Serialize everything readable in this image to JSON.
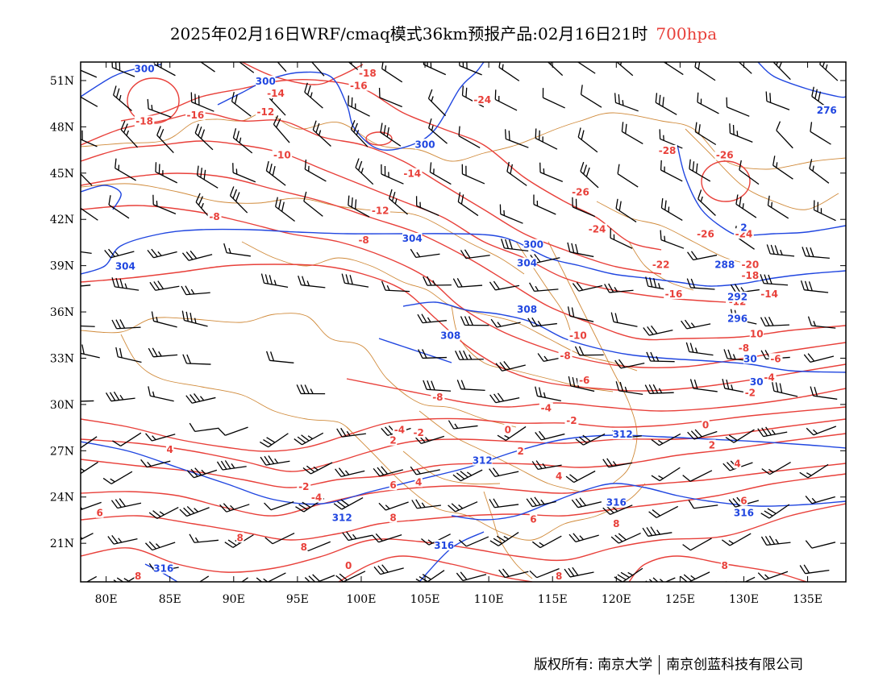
{
  "title": {
    "main": "2025年02月16日WRF/cmaq模式36km预报产品:02月16日21时",
    "level": "700hpa"
  },
  "colors": {
    "temperature": "#e8403a",
    "height": "#2046e0",
    "wind": "#000000",
    "borders": "#d08a3a"
  },
  "axes": {
    "lon_range": [
      78,
      138
    ],
    "lat_range": [
      18.5,
      52.2
    ],
    "x_ticks": [
      {
        "v": 80,
        "label": "80E"
      },
      {
        "v": 85,
        "label": "85E"
      },
      {
        "v": 90,
        "label": "90E"
      },
      {
        "v": 95,
        "label": "95E"
      },
      {
        "v": 100,
        "label": "100E"
      },
      {
        "v": 105,
        "label": "105E"
      },
      {
        "v": 110,
        "label": "110E"
      },
      {
        "v": 115,
        "label": "115E"
      },
      {
        "v": 120,
        "label": "120E"
      },
      {
        "v": 125,
        "label": "125E"
      },
      {
        "v": 130,
        "label": "130E"
      },
      {
        "v": 135,
        "label": "135E"
      }
    ],
    "y_ticks": [
      {
        "v": 21,
        "label": "21N"
      },
      {
        "v": 24,
        "label": "24N"
      },
      {
        "v": 27,
        "label": "27N"
      },
      {
        "v": 30,
        "label": "30N"
      },
      {
        "v": 33,
        "label": "33N"
      },
      {
        "v": 36,
        "label": "36N"
      },
      {
        "v": 39,
        "label": "39N"
      },
      {
        "v": 42,
        "label": "42N"
      },
      {
        "v": 45,
        "label": "45N"
      },
      {
        "v": 48,
        "label": "48N"
      },
      {
        "v": 51,
        "label": "51N"
      }
    ]
  },
  "temperature_labels": [
    {
      "lon": 100.5,
      "lat": 51.3,
      "text": "-18"
    },
    {
      "lon": 99.8,
      "lat": 50.5,
      "text": "-16"
    },
    {
      "lon": 93.3,
      "lat": 50.0,
      "text": "-14"
    },
    {
      "lon": 92.5,
      "lat": 48.8,
      "text": "-12"
    },
    {
      "lon": 83.0,
      "lat": 48.2,
      "text": "-18"
    },
    {
      "lon": 87.0,
      "lat": 48.6,
      "text": "-16"
    },
    {
      "lon": 109.5,
      "lat": 49.6,
      "text": "-24"
    },
    {
      "lon": 124.0,
      "lat": 46.3,
      "text": "-28"
    },
    {
      "lon": 128.5,
      "lat": 46.0,
      "text": "-26"
    },
    {
      "lon": 93.8,
      "lat": 46.0,
      "text": "-10"
    },
    {
      "lon": 104.0,
      "lat": 44.8,
      "text": "-14"
    },
    {
      "lon": 117.2,
      "lat": 43.6,
      "text": "-26"
    },
    {
      "lon": 101.5,
      "lat": 42.4,
      "text": "-12"
    },
    {
      "lon": 88.5,
      "lat": 42.0,
      "text": "-8"
    },
    {
      "lon": 118.5,
      "lat": 41.2,
      "text": "-24"
    },
    {
      "lon": 127.0,
      "lat": 40.9,
      "text": "-26"
    },
    {
      "lon": 130.0,
      "lat": 40.9,
      "text": "-24"
    },
    {
      "lon": 100.2,
      "lat": 40.5,
      "text": "-8"
    },
    {
      "lon": 123.5,
      "lat": 38.9,
      "text": "-22"
    },
    {
      "lon": 130.5,
      "lat": 38.9,
      "text": "-20"
    },
    {
      "lon": 130.5,
      "lat": 38.2,
      "text": "-18"
    },
    {
      "lon": 124.5,
      "lat": 37.0,
      "text": "-16"
    },
    {
      "lon": 129.5,
      "lat": 36.5,
      "text": "-12"
    },
    {
      "lon": 132.0,
      "lat": 37.0,
      "text": "-14"
    },
    {
      "lon": 117.0,
      "lat": 34.3,
      "text": "-10"
    },
    {
      "lon": 131.0,
      "lat": 34.4,
      "text": "10"
    },
    {
      "lon": 116.0,
      "lat": 33.0,
      "text": "-8"
    },
    {
      "lon": 130.0,
      "lat": 33.5,
      "text": "-8"
    },
    {
      "lon": 132.5,
      "lat": 32.8,
      "text": "-6"
    },
    {
      "lon": 117.5,
      "lat": 31.4,
      "text": "-6"
    },
    {
      "lon": 132.0,
      "lat": 31.6,
      "text": "-4"
    },
    {
      "lon": 130.5,
      "lat": 30.6,
      "text": "-2"
    },
    {
      "lon": 106.0,
      "lat": 30.3,
      "text": "-8"
    },
    {
      "lon": 114.5,
      "lat": 29.6,
      "text": "-4"
    },
    {
      "lon": 116.5,
      "lat": 28.8,
      "text": "-2"
    },
    {
      "lon": 104.5,
      "lat": 28.0,
      "text": "-2"
    },
    {
      "lon": 102.5,
      "lat": 27.5,
      "text": "2"
    },
    {
      "lon": 103.0,
      "lat": 28.2,
      "text": "-4"
    },
    {
      "lon": 111.5,
      "lat": 28.2,
      "text": "0"
    },
    {
      "lon": 127.0,
      "lat": 28.5,
      "text": "0"
    },
    {
      "lon": 112.5,
      "lat": 26.8,
      "text": "2"
    },
    {
      "lon": 127.5,
      "lat": 27.2,
      "text": "2"
    },
    {
      "lon": 85.0,
      "lat": 26.9,
      "text": "4"
    },
    {
      "lon": 115.5,
      "lat": 25.2,
      "text": "4"
    },
    {
      "lon": 129.5,
      "lat": 26.0,
      "text": "4"
    },
    {
      "lon": 95.5,
      "lat": 24.5,
      "text": "-2"
    },
    {
      "lon": 96.5,
      "lat": 23.8,
      "text": "-4"
    },
    {
      "lon": 102.5,
      "lat": 24.6,
      "text": "6"
    },
    {
      "lon": 104.5,
      "lat": 24.8,
      "text": "4"
    },
    {
      "lon": 130.0,
      "lat": 23.6,
      "text": "6"
    },
    {
      "lon": 79.5,
      "lat": 22.8,
      "text": "6"
    },
    {
      "lon": 102.5,
      "lat": 22.5,
      "text": "8"
    },
    {
      "lon": 113.5,
      "lat": 22.4,
      "text": "6"
    },
    {
      "lon": 120.0,
      "lat": 22.1,
      "text": "8"
    },
    {
      "lon": 90.5,
      "lat": 21.2,
      "text": "8"
    },
    {
      "lon": 95.5,
      "lat": 20.6,
      "text": "8"
    },
    {
      "lon": 99.0,
      "lat": 19.4,
      "text": "0"
    },
    {
      "lon": 128.5,
      "lat": 19.4,
      "text": "8"
    },
    {
      "lon": 82.5,
      "lat": 18.7,
      "text": "8"
    },
    {
      "lon": 115.5,
      "lat": 18.7,
      "text": "8"
    }
  ],
  "height_labels": [
    {
      "lon": 83.0,
      "lat": 51.6,
      "text": "300"
    },
    {
      "lon": 92.5,
      "lat": 50.8,
      "text": "300"
    },
    {
      "lon": 105.0,
      "lat": 46.7,
      "text": "300"
    },
    {
      "lon": 136.5,
      "lat": 48.9,
      "text": "276"
    },
    {
      "lon": 130.0,
      "lat": 41.3,
      "text": "2"
    },
    {
      "lon": 104.0,
      "lat": 40.6,
      "text": "304"
    },
    {
      "lon": 113.5,
      "lat": 40.2,
      "text": "300"
    },
    {
      "lon": 81.5,
      "lat": 38.8,
      "text": "304"
    },
    {
      "lon": 113.0,
      "lat": 39.0,
      "text": "304"
    },
    {
      "lon": 128.5,
      "lat": 38.9,
      "text": "288"
    },
    {
      "lon": 113.0,
      "lat": 36.0,
      "text": "308"
    },
    {
      "lon": 129.5,
      "lat": 36.8,
      "text": "292"
    },
    {
      "lon": 129.5,
      "lat": 35.4,
      "text": "296"
    },
    {
      "lon": 107.0,
      "lat": 34.3,
      "text": "308"
    },
    {
      "lon": 130.5,
      "lat": 32.8,
      "text": "30"
    },
    {
      "lon": 131.0,
      "lat": 31.3,
      "text": "30"
    },
    {
      "lon": 120.5,
      "lat": 27.9,
      "text": "312"
    },
    {
      "lon": 109.5,
      "lat": 26.2,
      "text": "312"
    },
    {
      "lon": 98.5,
      "lat": 22.5,
      "text": "312"
    },
    {
      "lon": 120.0,
      "lat": 23.5,
      "text": "316"
    },
    {
      "lon": 130.0,
      "lat": 22.8,
      "text": "316"
    },
    {
      "lon": 106.5,
      "lat": 20.7,
      "text": "316"
    },
    {
      "lon": 84.5,
      "lat": 19.2,
      "text": "316"
    }
  ],
  "footer": {
    "copyright": "版权所有: 南京大学",
    "company": "南京创蓝科技有限公司"
  }
}
